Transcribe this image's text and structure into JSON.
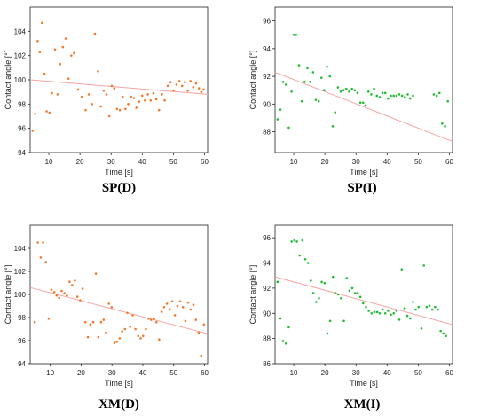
{
  "chart_data": [
    {
      "type": "scatter",
      "label": "SP(D)",
      "xlabel": "Time [s]",
      "ylabel": "Contact angle [°]",
      "xlim": [
        4,
        61
      ],
      "ylim": [
        94,
        106
      ],
      "xticks": [
        10,
        20,
        30,
        40,
        50,
        60
      ],
      "yticks": [
        94,
        96,
        98,
        100,
        102,
        104
      ],
      "point_color": "#f07a2a",
      "trend_color": "#f4a3a3",
      "trend": [
        [
          4,
          100.0
        ],
        [
          61,
          98.8
        ]
      ],
      "points": [
        [
          4.8,
          95.8
        ],
        [
          5.6,
          97.2
        ],
        [
          6.4,
          103.2
        ],
        [
          7.1,
          102.3
        ],
        [
          7.8,
          104.7
        ],
        [
          8.6,
          100.5
        ],
        [
          9.3,
          97.4
        ],
        [
          10.2,
          97.3
        ],
        [
          11.0,
          98.9
        ],
        [
          12.0,
          102.5
        ],
        [
          12.8,
          98.8
        ],
        [
          13.6,
          101.3
        ],
        [
          14.5,
          102.7
        ],
        [
          15.4,
          103.4
        ],
        [
          16.3,
          100.1
        ],
        [
          17.2,
          102.0
        ],
        [
          18.1,
          102.2
        ],
        [
          19.4,
          99.2
        ],
        [
          20.6,
          98.6
        ],
        [
          21.8,
          97.5
        ],
        [
          22.8,
          98.8
        ],
        [
          23.8,
          98.0
        ],
        [
          24.8,
          103.8
        ],
        [
          25.8,
          100.7
        ],
        [
          26.7,
          97.8
        ],
        [
          27.6,
          99.1
        ],
        [
          28.5,
          98.8
        ],
        [
          29.4,
          97.0
        ],
        [
          30.2,
          99.5
        ],
        [
          31.0,
          99.3
        ],
        [
          31.9,
          97.6
        ],
        [
          32.8,
          97.5
        ],
        [
          33.7,
          98.6
        ],
        [
          34.6,
          97.6
        ],
        [
          35.5,
          98.0
        ],
        [
          36.4,
          98.6
        ],
        [
          37.3,
          98.5
        ],
        [
          38.1,
          97.7
        ],
        [
          39.0,
          98.2
        ],
        [
          40.0,
          98.7
        ],
        [
          40.9,
          98.3
        ],
        [
          41.8,
          98.8
        ],
        [
          42.7,
          98.3
        ],
        [
          43.6,
          98.9
        ],
        [
          44.5,
          98.4
        ],
        [
          45.4,
          97.5
        ],
        [
          46.3,
          98.8
        ],
        [
          47.2,
          98.3
        ],
        [
          48.2,
          99.5
        ],
        [
          49.1,
          99.8
        ],
        [
          50.0,
          99.1
        ],
        [
          51.0,
          99.6
        ],
        [
          51.9,
          99.9
        ],
        [
          52.8,
          99.5
        ],
        [
          53.7,
          99.8
        ],
        [
          54.6,
          99.1
        ],
        [
          55.5,
          99.9
        ],
        [
          56.4,
          99.4
        ],
        [
          57.3,
          99.7
        ],
        [
          58.2,
          99.3
        ],
        [
          59.0,
          99.0
        ],
        [
          59.7,
          99.2
        ]
      ]
    },
    {
      "type": "scatter",
      "label": "SP(I)",
      "xlabel": "Time [s]",
      "ylabel": "Contact angle [°]",
      "xlim": [
        4,
        61
      ],
      "ylim": [
        86.5,
        97
      ],
      "xticks": [
        10,
        20,
        30,
        40,
        50,
        60
      ],
      "yticks": [
        88,
        90,
        92,
        94,
        96
      ],
      "point_color": "#22bb33",
      "trend_color": "#f4a3a3",
      "trend": [
        [
          4,
          92.3
        ],
        [
          61,
          87.3
        ]
      ],
      "points": [
        [
          4.8,
          88.9
        ],
        [
          5.7,
          89.6
        ],
        [
          6.6,
          91.6
        ],
        [
          7.5,
          91.4
        ],
        [
          8.4,
          88.3
        ],
        [
          9.3,
          90.9
        ],
        [
          10.0,
          95.0
        ],
        [
          10.8,
          95.0
        ],
        [
          11.7,
          92.8
        ],
        [
          12.6,
          90.2
        ],
        [
          13.5,
          91.6
        ],
        [
          14.4,
          92.6
        ],
        [
          15.3,
          91.6
        ],
        [
          16.2,
          92.3
        ],
        [
          17.1,
          90.3
        ],
        [
          18.0,
          90.2
        ],
        [
          18.9,
          91.9
        ],
        [
          19.8,
          91.0
        ],
        [
          20.7,
          92.7
        ],
        [
          21.6,
          92.0
        ],
        [
          22.5,
          88.4
        ],
        [
          23.3,
          89.4
        ],
        [
          24.2,
          91.2
        ],
        [
          25.1,
          90.9
        ],
        [
          26.0,
          91.0
        ],
        [
          26.9,
          91.1
        ],
        [
          27.8,
          90.9
        ],
        [
          28.7,
          91.1
        ],
        [
          29.6,
          91.0
        ],
        [
          30.5,
          90.8
        ],
        [
          31.4,
          90.1
        ],
        [
          32.3,
          90.1
        ],
        [
          33.1,
          89.9
        ],
        [
          34.0,
          90.9
        ],
        [
          34.9,
          90.7
        ],
        [
          35.8,
          91.1
        ],
        [
          36.7,
          90.6
        ],
        [
          37.6,
          90.5
        ],
        [
          38.5,
          90.8
        ],
        [
          39.4,
          90.8
        ],
        [
          40.3,
          90.4
        ],
        [
          41.2,
          90.6
        ],
        [
          42.1,
          90.6
        ],
        [
          43.0,
          90.6
        ],
        [
          43.9,
          90.7
        ],
        [
          44.8,
          90.6
        ],
        [
          45.7,
          90.5
        ],
        [
          46.6,
          90.7
        ],
        [
          47.4,
          90.4
        ],
        [
          48.3,
          90.6
        ],
        [
          55.0,
          90.7
        ],
        [
          55.9,
          90.6
        ],
        [
          56.8,
          90.8
        ],
        [
          57.7,
          88.6
        ],
        [
          58.6,
          88.4
        ],
        [
          59.5,
          90.2
        ]
      ]
    },
    {
      "type": "scatter",
      "label": "XM(D)",
      "xlabel": "Time [s]",
      "ylabel": "Contact angle [°]",
      "xlim": [
        3.5,
        61
      ],
      "ylim": [
        94,
        106
      ],
      "xticks": [
        10,
        20,
        30,
        40,
        50,
        60
      ],
      "yticks": [
        94,
        96,
        98,
        100,
        102,
        104
      ],
      "point_color": "#f07a2a",
      "trend_color": "#f4a3a3",
      "trend": [
        [
          3.5,
          100.6
        ],
        [
          61,
          96.6
        ]
      ],
      "points": [
        [
          5.0,
          97.6
        ],
        [
          6.0,
          104.5
        ],
        [
          6.9,
          103.2
        ],
        [
          7.7,
          104.5
        ],
        [
          8.6,
          102.8
        ],
        [
          9.5,
          97.9
        ],
        [
          10.4,
          100.4
        ],
        [
          11.3,
          100.2
        ],
        [
          12.1,
          99.9
        ],
        [
          12.9,
          99.7
        ],
        [
          13.7,
          100.3
        ],
        [
          14.6,
          100.1
        ],
        [
          15.4,
          99.9
        ],
        [
          16.3,
          101.1
        ],
        [
          17.1,
          100.8
        ],
        [
          18.0,
          101.2
        ],
        [
          18.8,
          99.8
        ],
        [
          19.7,
          99.5
        ],
        [
          20.5,
          100.5
        ],
        [
          21.4,
          97.6
        ],
        [
          22.2,
          96.3
        ],
        [
          23.0,
          97.4
        ],
        [
          23.9,
          97.6
        ],
        [
          24.8,
          101.8
        ],
        [
          25.6,
          96.3
        ],
        [
          26.5,
          97.6
        ],
        [
          27.3,
          97.8
        ],
        [
          28.1,
          96.7
        ],
        [
          29.0,
          99.2
        ],
        [
          29.9,
          98.9
        ],
        [
          30.8,
          95.8
        ],
        [
          31.6,
          95.9
        ],
        [
          32.5,
          96.2
        ],
        [
          33.3,
          96.8
        ],
        [
          34.2,
          97.0
        ],
        [
          35.0,
          98.4
        ],
        [
          35.9,
          97.2
        ],
        [
          36.7,
          98.2
        ],
        [
          37.6,
          97.0
        ],
        [
          38.5,
          96.4
        ],
        [
          39.3,
          96.2
        ],
        [
          40.1,
          96.4
        ],
        [
          41.0,
          97.0
        ],
        [
          41.9,
          97.9
        ],
        [
          42.7,
          97.8
        ],
        [
          43.6,
          97.9
        ],
        [
          44.4,
          97.6
        ],
        [
          45.3,
          96.1
        ],
        [
          46.1,
          98.5
        ],
        [
          46.9,
          98.9
        ],
        [
          47.8,
          99.2
        ],
        [
          48.7,
          98.7
        ],
        [
          49.5,
          99.4
        ],
        [
          50.4,
          98.2
        ],
        [
          51.2,
          99.0
        ],
        [
          52.1,
          99.4
        ],
        [
          53.0,
          98.9
        ],
        [
          53.8,
          97.7
        ],
        [
          54.7,
          99.3
        ],
        [
          55.5,
          98.7
        ],
        [
          56.4,
          99.1
        ],
        [
          57.2,
          97.8
        ],
        [
          58.1,
          96.7
        ],
        [
          58.9,
          94.7
        ],
        [
          59.8,
          97.4
        ]
      ]
    },
    {
      "type": "scatter",
      "label": "XM(I)",
      "xlabel": "Time [s]",
      "ylabel": "Contact angle [°]",
      "xlim": [
        4,
        61
      ],
      "ylim": [
        86,
        97
      ],
      "xticks": [
        10,
        20,
        30,
        40,
        50,
        60
      ],
      "yticks": [
        86,
        88,
        90,
        92,
        94,
        96
      ],
      "point_color": "#22bb33",
      "trend_color": "#f4a3a3",
      "trend": [
        [
          4,
          92.9
        ],
        [
          61,
          89.1
        ]
      ],
      "points": [
        [
          4.8,
          92.5
        ],
        [
          5.7,
          89.6
        ],
        [
          6.6,
          87.8
        ],
        [
          7.5,
          87.6
        ],
        [
          8.4,
          88.9
        ],
        [
          9.3,
          95.7
        ],
        [
          10.2,
          95.8
        ],
        [
          11.0,
          95.7
        ],
        [
          11.9,
          94.6
        ],
        [
          12.8,
          95.8
        ],
        [
          13.7,
          94.3
        ],
        [
          14.6,
          94.0
        ],
        [
          15.5,
          92.6
        ],
        [
          16.3,
          91.6
        ],
        [
          17.2,
          90.9
        ],
        [
          18.1,
          91.2
        ],
        [
          19.0,
          92.5
        ],
        [
          19.9,
          92.4
        ],
        [
          20.8,
          88.4
        ],
        [
          21.7,
          89.4
        ],
        [
          22.6,
          92.9
        ],
        [
          23.4,
          91.6
        ],
        [
          24.3,
          91.5
        ],
        [
          25.2,
          91.2
        ],
        [
          26.1,
          89.4
        ],
        [
          27.0,
          92.8
        ],
        [
          27.9,
          91.8
        ],
        [
          28.8,
          92.0
        ],
        [
          29.7,
          91.6
        ],
        [
          30.5,
          91.6
        ],
        [
          31.4,
          91.3
        ],
        [
          32.3,
          90.8
        ],
        [
          33.2,
          90.5
        ],
        [
          34.1,
          90.2
        ],
        [
          35.0,
          90.0
        ],
        [
          35.9,
          90.1
        ],
        [
          36.8,
          90.1
        ],
        [
          37.6,
          90.0
        ],
        [
          38.5,
          90.3
        ],
        [
          39.4,
          90.0
        ],
        [
          40.3,
          90.2
        ],
        [
          41.2,
          89.9
        ],
        [
          42.1,
          90.0
        ],
        [
          43.0,
          90.2
        ],
        [
          43.9,
          89.5
        ],
        [
          44.7,
          93.5
        ],
        [
          45.6,
          90.4
        ],
        [
          46.5,
          89.8
        ],
        [
          47.4,
          89.6
        ],
        [
          48.3,
          90.9
        ],
        [
          49.2,
          90.3
        ],
        [
          50.1,
          90.5
        ],
        [
          51.0,
          88.8
        ],
        [
          51.8,
          93.8
        ],
        [
          52.7,
          90.5
        ],
        [
          53.6,
          90.6
        ],
        [
          54.5,
          90.3
        ],
        [
          55.4,
          90.5
        ],
        [
          56.3,
          90.3
        ],
        [
          57.2,
          88.6
        ],
        [
          58.1,
          88.4
        ],
        [
          58.9,
          88.2
        ]
      ]
    }
  ]
}
